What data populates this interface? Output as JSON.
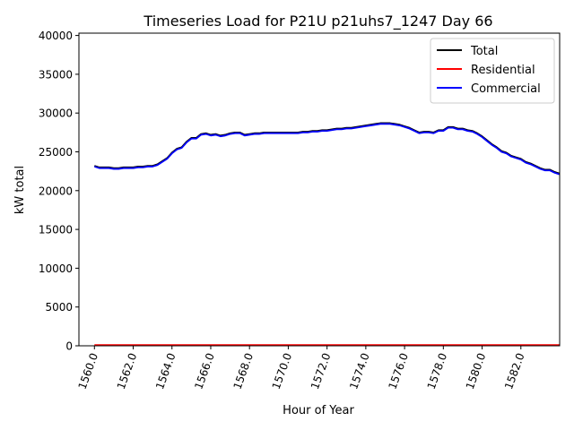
{
  "chart_data": {
    "type": "line",
    "title": "Timeseries Load for P21U p21uhs7_1247  Day 66",
    "xlabel": "Hour of Year",
    "ylabel": "kW total",
    "xlim": [
      1559.2,
      1584.0
    ],
    "ylim": [
      0,
      40300
    ],
    "x_ticks": [
      1560,
      1562,
      1564,
      1566,
      1568,
      1570,
      1572,
      1574,
      1576,
      1578,
      1580,
      1582
    ],
    "x_tick_labels": [
      "1560.0",
      "1562.0",
      "1564.0",
      "1566.0",
      "1568.0",
      "1570.0",
      "1572.0",
      "1574.0",
      "1576.0",
      "1578.0",
      "1580.0",
      "1582.0"
    ],
    "y_ticks": [
      0,
      5000,
      10000,
      15000,
      20000,
      25000,
      30000,
      35000,
      40000
    ],
    "y_tick_labels": [
      "0",
      "5000",
      "10000",
      "15000",
      "20000",
      "25000",
      "30000",
      "35000",
      "40000"
    ],
    "legend": {
      "position": "top-right",
      "entries": [
        "Total",
        "Residential",
        "Commercial"
      ]
    },
    "x_start": 1560,
    "x_step": 0.25,
    "series": [
      {
        "name": "Total",
        "color": "#000000",
        "values": [
          23200,
          23000,
          23000,
          23000,
          22900,
          22900,
          23000,
          23000,
          23000,
          23100,
          23100,
          23200,
          23200,
          23400,
          23800,
          24200,
          24900,
          25400,
          25600,
          26300,
          26800,
          26800,
          27300,
          27400,
          27200,
          27300,
          27100,
          27200,
          27400,
          27500,
          27500,
          27200,
          27300,
          27400,
          27400,
          27500,
          27500,
          27500,
          27500,
          27500,
          27500,
          27500,
          27500,
          27600,
          27600,
          27700,
          27700,
          27800,
          27800,
          27900,
          28000,
          28000,
          28100,
          28100,
          28200,
          28300,
          28400,
          28500,
          28600,
          28700,
          28700,
          28700,
          28600,
          28500,
          28300,
          28100,
          27800,
          27500,
          27600,
          27600,
          27500,
          27800,
          27800,
          28200,
          28200,
          28000,
          28000,
          27800,
          27700,
          27400,
          27000,
          26500,
          26000,
          25600,
          25100,
          24900,
          24500,
          24300,
          24100,
          23700,
          23500,
          23200,
          22900,
          22700,
          22700,
          22400,
          22200
        ]
      },
      {
        "name": "Residential",
        "color": "#ff0000",
        "values": [
          95,
          95,
          95,
          95,
          95,
          95,
          95,
          95,
          95,
          95,
          95,
          95,
          95,
          95,
          95,
          95,
          95,
          95,
          95,
          95,
          95,
          95,
          95,
          95,
          95,
          95,
          95,
          95,
          95,
          95,
          95,
          95,
          95,
          95,
          95,
          95,
          95,
          95,
          95,
          95,
          95,
          95,
          95,
          95,
          95,
          95,
          95,
          95,
          95,
          95,
          95,
          95,
          95,
          95,
          95,
          95,
          95,
          95,
          95,
          95,
          95,
          95,
          95,
          95,
          95,
          95,
          95,
          95,
          95,
          95,
          95,
          95,
          95,
          95,
          95,
          95,
          95,
          95,
          95,
          95,
          95,
          95,
          95,
          95,
          95,
          95,
          95,
          95,
          95,
          95,
          95,
          95,
          95,
          95,
          95,
          95,
          95
        ]
      },
      {
        "name": "Commercial",
        "color": "#0000ff",
        "values": [
          23100,
          22900,
          22900,
          22900,
          22800,
          22800,
          22900,
          22900,
          22900,
          23000,
          23000,
          23100,
          23100,
          23300,
          23700,
          24100,
          24800,
          25300,
          25500,
          26200,
          26700,
          26700,
          27200,
          27300,
          27100,
          27200,
          27000,
          27100,
          27300,
          27400,
          27400,
          27100,
          27200,
          27300,
          27300,
          27400,
          27400,
          27400,
          27400,
          27400,
          27400,
          27400,
          27400,
          27500,
          27500,
          27600,
          27600,
          27700,
          27700,
          27800,
          27900,
          27900,
          28000,
          28000,
          28100,
          28200,
          28300,
          28400,
          28500,
          28600,
          28600,
          28600,
          28500,
          28400,
          28200,
          28000,
          27700,
          27400,
          27500,
          27500,
          27400,
          27700,
          27700,
          28100,
          28100,
          27900,
          27900,
          27700,
          27600,
          27300,
          26900,
          26400,
          25900,
          25500,
          25000,
          24800,
          24400,
          24200,
          24000,
          23600,
          23400,
          23100,
          22800,
          22600,
          22600,
          22300,
          22100
        ]
      }
    ]
  }
}
